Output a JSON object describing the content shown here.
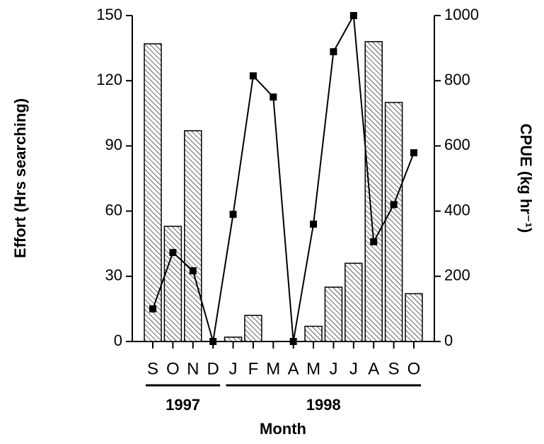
{
  "chart_data": {
    "type": "bar_line",
    "xlabel": "Month",
    "ylabel": "Effort (Hrs searching)",
    "y2label": "CPUE (kg hr⁻¹)",
    "categories": [
      "S",
      "O",
      "N",
      "D",
      "J",
      "F",
      "M",
      "A",
      "M",
      "J",
      "J",
      "A",
      "S",
      "O"
    ],
    "groups": [
      {
        "label": "1997",
        "start": 0,
        "end": 3
      },
      {
        "label": "1998",
        "start": 4,
        "end": 13
      }
    ],
    "series": [
      {
        "type": "bar",
        "color": "#000000",
        "axis": "y",
        "values": [
          137,
          53,
          97,
          0,
          2,
          12,
          0,
          0,
          7,
          25,
          36,
          138,
          110,
          22
        ]
      },
      {
        "type": "line",
        "color": "#000000",
        "axis": "y2",
        "values": [
          100,
          273,
          217,
          0,
          390,
          815,
          750,
          0,
          360,
          889,
          1000,
          306,
          420,
          579
        ]
      }
    ],
    "ylim": [
      0,
      150
    ],
    "yticks": [
      0,
      30,
      60,
      90,
      120,
      150
    ],
    "y2lim": [
      0,
      1000
    ],
    "y2ticks": [
      0,
      200,
      400,
      600,
      800,
      1000
    ]
  }
}
